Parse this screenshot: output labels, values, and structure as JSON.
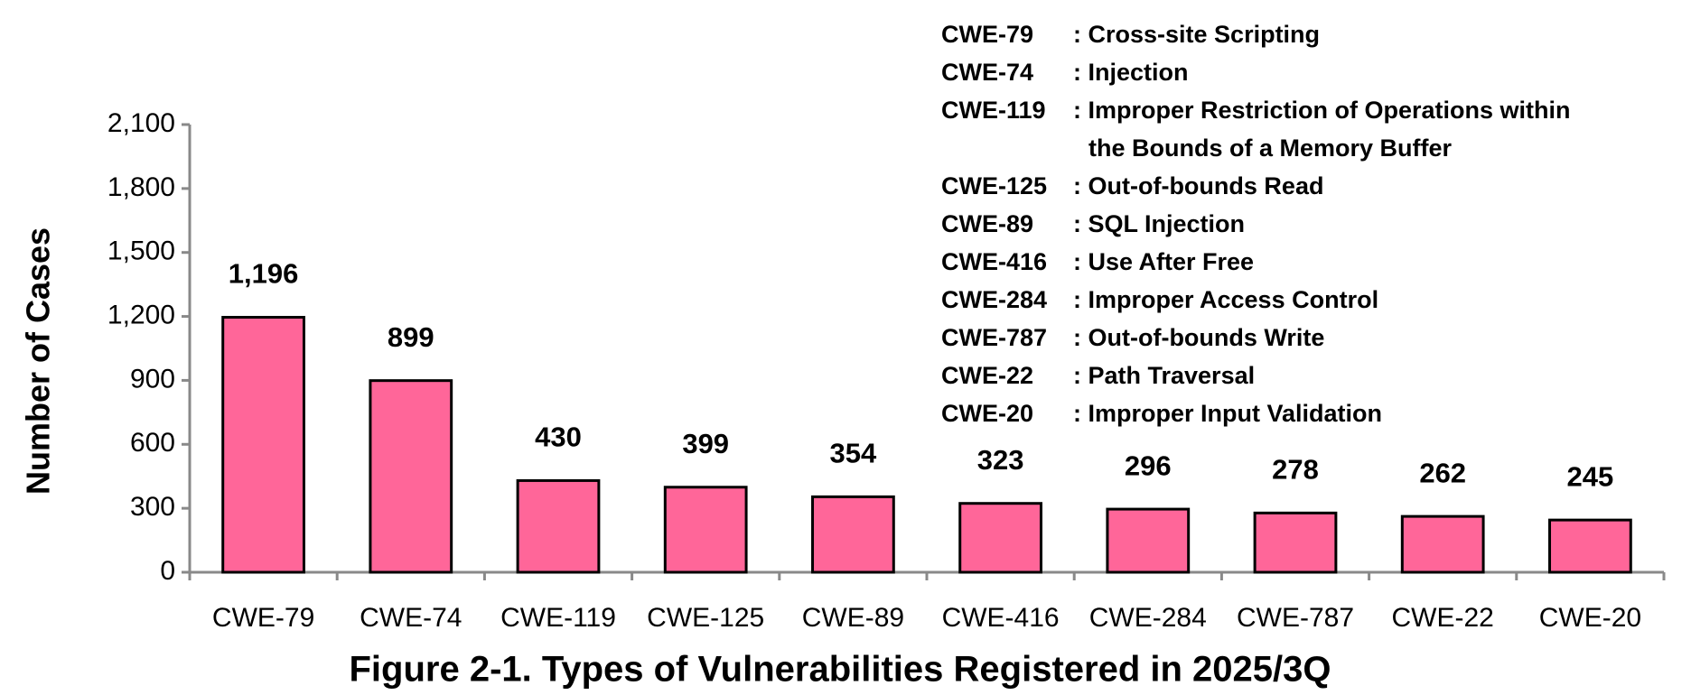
{
  "chart_data": {
    "type": "bar",
    "title": "Figure 2-1. Types of Vulnerabilities Registered in 2025/3Q",
    "y_label": "Number of Cases",
    "categories": [
      "CWE-79",
      "CWE-74",
      "CWE-119",
      "CWE-125",
      "CWE-89",
      "CWE-416",
      "CWE-284",
      "CWE-787",
      "CWE-22",
      "CWE-20"
    ],
    "values": [
      1196,
      899,
      430,
      399,
      354,
      323,
      296,
      278,
      262,
      245
    ],
    "value_labels": [
      "1,196",
      "899",
      "430",
      "399",
      "354",
      "323",
      "296",
      "278",
      "262",
      "245"
    ],
    "color": "#ff6699",
    "ylim": [
      0,
      2100
    ],
    "yticks": [
      0,
      300,
      600,
      900,
      {
        "value": 1200,
        "label": "1,200"
      },
      {
        "value": 1500,
        "label": "1,500"
      },
      {
        "value": 1800,
        "label": "1,800"
      },
      {
        "value": 2100,
        "label": "2,100"
      }
    ],
    "grid": false,
    "definitions": [
      {
        "code": "CWE-79",
        "lines": [
          ": Cross-site Scripting"
        ]
      },
      {
        "code": "CWE-74",
        "lines": [
          ": Injection"
        ]
      },
      {
        "code": "CWE-119",
        "lines": [
          ": Improper Restriction of Operations within",
          "the Bounds of a Memory Buffer"
        ]
      },
      {
        "code": "CWE-125",
        "lines": [
          ": Out-of-bounds Read"
        ]
      },
      {
        "code": "CWE-89",
        "lines": [
          ": SQL Injection"
        ]
      },
      {
        "code": "CWE-416",
        "lines": [
          ": Use After Free"
        ]
      },
      {
        "code": "CWE-284",
        "lines": [
          ": Improper Access Control"
        ]
      },
      {
        "code": "CWE-787",
        "lines": [
          ": Out-of-bounds Write"
        ]
      },
      {
        "code": "CWE-22",
        "lines": [
          ": Path Traversal"
        ]
      },
      {
        "code": "CWE-20",
        "lines": [
          ": Improper Input Validation"
        ]
      }
    ]
  }
}
